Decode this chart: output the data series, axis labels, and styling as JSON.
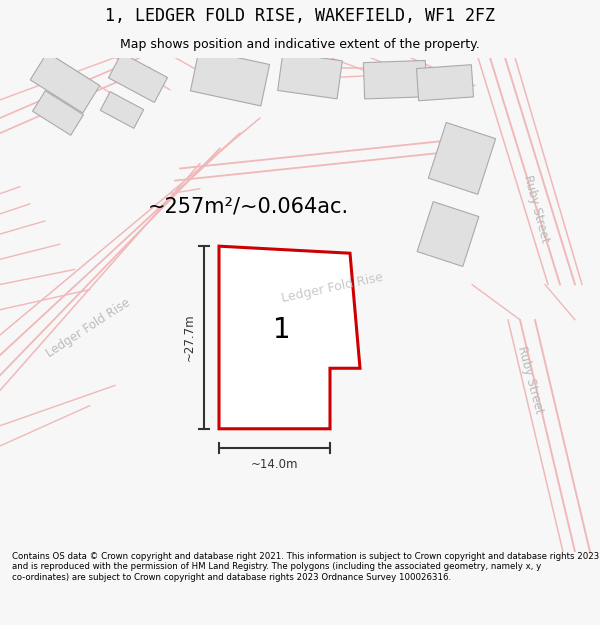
{
  "title": "1, LEDGER FOLD RISE, WAKEFIELD, WF1 2FZ",
  "subtitle": "Map shows position and indicative extent of the property.",
  "footer": "Contains OS data © Crown copyright and database right 2021. This information is subject to Crown copyright and database rights 2023 and is reproduced with the permission of HM Land Registry. The polygons (including the associated geometry, namely x, y co-ordinates) are subject to Crown copyright and database rights 2023 Ordnance Survey 100026316.",
  "area_label": "~257m²/~0.064ac.",
  "width_label": "~14.0m",
  "height_label": "~27.7m",
  "plot_number": "1",
  "street_label_left": "Ledger Fold Rise",
  "street_label_center": "Ledger Fold Rise",
  "street_label_right1": "Ruby Street",
  "street_label_right2": "Ruby Street",
  "plot_outline_color": "#cc0000",
  "building_fill": "#e0e0e0",
  "building_stroke": "#aaaaaa",
  "road_pink": "#f0b8b8",
  "road_label_color": "#bbbbbb",
  "dim_color": "#333333",
  "title_fontsize": 12,
  "subtitle_fontsize": 9,
  "footer_fontsize": 6.2
}
